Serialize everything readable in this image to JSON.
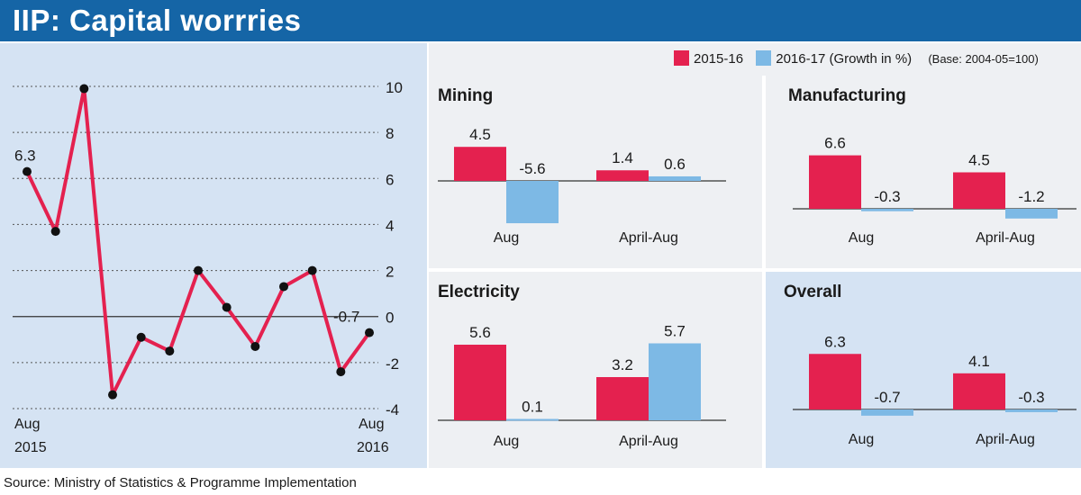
{
  "header": {
    "title": "IIP: Capital worrries"
  },
  "legend": {
    "series1": "2015-16",
    "series2": "2016-17",
    "growth_note": "(Growth in %)",
    "base_note": "(Base: 2004-05=100)"
  },
  "colors": {
    "series1": "#e4214f",
    "series2": "#7db9e5",
    "header": "#1565a6",
    "line": "#e4214f"
  },
  "source": "Source: Ministry of Statistics & Programme Implementation",
  "chart_data": [
    {
      "type": "line",
      "x_start_label": [
        "Aug",
        "2015"
      ],
      "x_end_label": [
        "Aug",
        "2016"
      ],
      "values": [
        6.3,
        3.7,
        9.9,
        -3.4,
        -0.9,
        -1.5,
        2.0,
        0.4,
        -1.3,
        1.3,
        2.0,
        -2.4,
        -0.7
      ],
      "point_labels": [
        {
          "index": 0,
          "text": "6.3"
        },
        {
          "index": 12,
          "text": "-0.7"
        }
      ],
      "yticks": [
        "10",
        "8",
        "6",
        "4",
        "2",
        "0",
        "-2",
        "-4"
      ],
      "ylim": [
        -4,
        10
      ],
      "grid": true
    },
    {
      "type": "bar",
      "title": "Mining",
      "categories": [
        "Aug",
        "April-Aug"
      ],
      "series": [
        {
          "name": "2015-16",
          "values": [
            4.5,
            1.4
          ],
          "labels": [
            "4.5",
            "1.4"
          ]
        },
        {
          "name": "2016-17",
          "values": [
            -5.6,
            0.6
          ],
          "labels": [
            "-5.6",
            "0.6"
          ]
        }
      ]
    },
    {
      "type": "bar",
      "title": "Manufacturing",
      "categories": [
        "Aug",
        "April-Aug"
      ],
      "series": [
        {
          "name": "2015-16",
          "values": [
            6.6,
            4.5
          ],
          "labels": [
            "6.6",
            "4.5"
          ]
        },
        {
          "name": "2016-17",
          "values": [
            -0.3,
            -1.2
          ],
          "labels": [
            "-0.3",
            "-1.2"
          ]
        }
      ]
    },
    {
      "type": "bar",
      "title": "Electricity",
      "categories": [
        "Aug",
        "April-Aug"
      ],
      "series": [
        {
          "name": "2015-16",
          "values": [
            5.6,
            3.2
          ],
          "labels": [
            "5.6",
            "3.2"
          ]
        },
        {
          "name": "2016-17",
          "values": [
            0.1,
            5.7
          ],
          "labels": [
            "0.1",
            "5.7"
          ]
        }
      ]
    },
    {
      "type": "bar",
      "title": "Overall",
      "categories": [
        "Aug",
        "April-Aug"
      ],
      "series": [
        {
          "name": "2015-16",
          "values": [
            6.3,
            4.1
          ],
          "labels": [
            "6.3",
            "4.1"
          ]
        },
        {
          "name": "2016-17",
          "values": [
            -0.7,
            -0.3
          ],
          "labels": [
            "-0.7",
            "-0.3"
          ]
        }
      ]
    }
  ]
}
